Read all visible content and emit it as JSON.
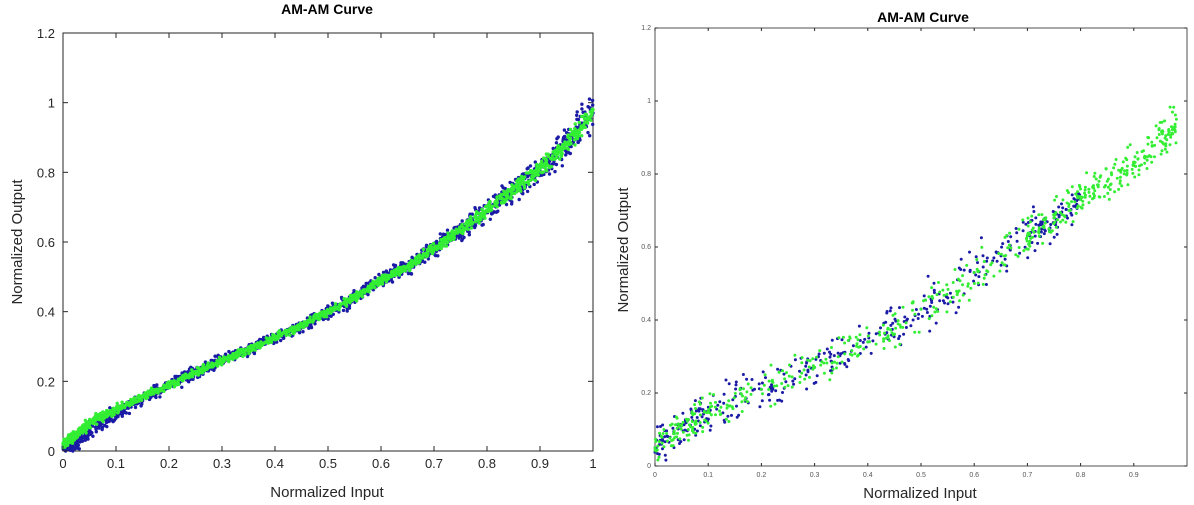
{
  "chart_data": [
    {
      "type": "scatter",
      "title": "AM-AM Curve",
      "xlabel": "Normalized Input",
      "ylabel": "Normalized Output",
      "xlim": [
        0,
        1
      ],
      "ylim": [
        0,
        1.2
      ],
      "xticks": [
        "0",
        "0.1",
        "0.2",
        "0.3",
        "0.4",
        "0.5",
        "0.6",
        "0.7",
        "0.8",
        "0.9",
        "1"
      ],
      "yticks": [
        "0",
        "0.2",
        "0.4",
        "0.6",
        "0.8",
        "1",
        "1.2"
      ],
      "grid": false,
      "series": [
        {
          "color": "#1a1aa6",
          "x": [
            0.0,
            0.02,
            0.05,
            0.1,
            0.15,
            0.2,
            0.25,
            0.3,
            0.35,
            0.4,
            0.45,
            0.5,
            0.55,
            0.6,
            0.65,
            0.7,
            0.75,
            0.8,
            0.85,
            0.9,
            0.95,
            1.0
          ],
          "y": [
            0.01,
            0.02,
            0.06,
            0.11,
            0.15,
            0.19,
            0.225,
            0.26,
            0.29,
            0.325,
            0.36,
            0.4,
            0.44,
            0.49,
            0.53,
            0.58,
            0.635,
            0.69,
            0.75,
            0.81,
            0.88,
            0.97
          ],
          "spread": [
            0.012,
            0.018,
            0.018,
            0.016,
            0.015,
            0.014,
            0.014,
            0.014,
            0.014,
            0.014,
            0.014,
            0.015,
            0.016,
            0.017,
            0.018,
            0.02,
            0.022,
            0.025,
            0.03,
            0.035,
            0.04,
            0.045
          ]
        },
        {
          "color": "#33ee33",
          "x": [
            0.0,
            0.02,
            0.05,
            0.1,
            0.15,
            0.2,
            0.25,
            0.3,
            0.35,
            0.4,
            0.45,
            0.5,
            0.55,
            0.6,
            0.65,
            0.7,
            0.75,
            0.8,
            0.85,
            0.9,
            0.95,
            1.0
          ],
          "y": [
            0.02,
            0.04,
            0.08,
            0.12,
            0.155,
            0.19,
            0.225,
            0.26,
            0.29,
            0.325,
            0.36,
            0.4,
            0.44,
            0.49,
            0.53,
            0.58,
            0.635,
            0.69,
            0.75,
            0.81,
            0.88,
            0.98
          ],
          "spread": [
            0.01,
            0.012,
            0.012,
            0.011,
            0.01,
            0.009,
            0.009,
            0.009,
            0.009,
            0.009,
            0.009,
            0.009,
            0.01,
            0.01,
            0.011,
            0.012,
            0.013,
            0.014,
            0.016,
            0.018,
            0.02,
            0.025
          ]
        }
      ]
    },
    {
      "type": "scatter",
      "title": "AM-AM Curve",
      "xlabel": "Normalized Input",
      "ylabel": "Normalized Output",
      "xlim": [
        0,
        1
      ],
      "ylim": [
        0,
        1.2
      ],
      "xticks": [
        "0",
        "0.1",
        "0.2",
        "0.3",
        "0.4",
        "0.5",
        "0.6",
        "0.7",
        "0.8",
        "0.9"
      ],
      "yticks": [
        "0",
        "0.2",
        "0.4",
        "0.6",
        "0.8",
        "1",
        "1.2"
      ],
      "grid": false,
      "series": [
        {
          "color": "#1a1aa6",
          "x": [
            0.0,
            0.05,
            0.1,
            0.2,
            0.3,
            0.4,
            0.5,
            0.6,
            0.7,
            0.75,
            0.8
          ],
          "y": [
            0.05,
            0.11,
            0.15,
            0.21,
            0.27,
            0.34,
            0.43,
            0.53,
            0.63,
            0.68,
            0.73
          ],
          "spread": [
            0.04,
            0.045,
            0.045,
            0.045,
            0.045,
            0.045,
            0.05,
            0.055,
            0.05,
            0.05,
            0.04
          ]
        },
        {
          "color": "#33ee33",
          "x": [
            0.0,
            0.05,
            0.1,
            0.2,
            0.3,
            0.4,
            0.5,
            0.6,
            0.7,
            0.75,
            0.8,
            0.85,
            0.9,
            0.95,
            0.98
          ],
          "y": [
            0.05,
            0.11,
            0.15,
            0.21,
            0.27,
            0.34,
            0.43,
            0.53,
            0.63,
            0.68,
            0.73,
            0.78,
            0.83,
            0.89,
            0.95
          ],
          "spread": [
            0.035,
            0.04,
            0.04,
            0.04,
            0.04,
            0.04,
            0.045,
            0.05,
            0.045,
            0.045,
            0.04,
            0.04,
            0.05,
            0.05,
            0.05
          ]
        }
      ]
    }
  ]
}
